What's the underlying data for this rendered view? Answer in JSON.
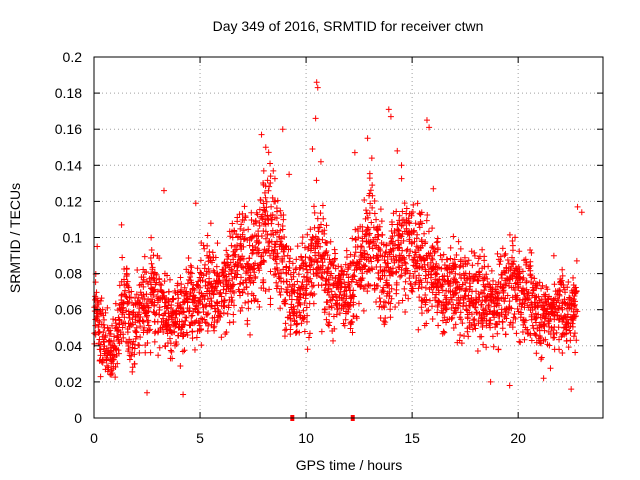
{
  "chart_data": {
    "type": "scatter",
    "title": "Day 349 of 2016, SRMTID for receiver ctwn",
    "xlabel": "GPS time / hours",
    "ylabel": "SRMTID / TECUs",
    "xlim": [
      0,
      24
    ],
    "ylim": [
      0,
      0.2
    ],
    "xticks": [
      0,
      5,
      10,
      15,
      20
    ],
    "xtick_labels": [
      "0",
      "5",
      "10",
      "15",
      "20"
    ],
    "yticks": [
      0,
      0.02,
      0.04,
      0.06,
      0.08,
      0.1,
      0.12,
      0.14,
      0.16,
      0.18,
      0.2
    ],
    "ytick_labels": [
      "0",
      "0.02",
      "0.04",
      "0.06",
      "0.08",
      "0.1",
      "0.12",
      "0.14",
      "0.16",
      "0.18",
      "0.2"
    ],
    "grid": true,
    "marker": "plus",
    "series_color": "#ff0000",
    "gap_markers_x": [
      9.35,
      12.2
    ],
    "series": [
      {
        "name": "SRMTID",
        "x": [
          0.1,
          0.3,
          0.5,
          0.7,
          0.9,
          1.1,
          1.3,
          1.5,
          1.7,
          1.9,
          2.1,
          2.3,
          2.5,
          2.7,
          2.9,
          3.1,
          3.3,
          3.5,
          3.7,
          3.9,
          4.1,
          4.3,
          4.5,
          4.7,
          4.9,
          5.1,
          5.3,
          5.5,
          5.7,
          5.9,
          6.1,
          6.3,
          6.5,
          6.7,
          6.9,
          7.1,
          7.3,
          7.5,
          7.7,
          7.9,
          8.1,
          8.3,
          8.5,
          8.7,
          8.9,
          9.1,
          9.3,
          9.5,
          9.7,
          9.9,
          10.1,
          10.3,
          10.5,
          10.7,
          10.9,
          11.1,
          11.3,
          11.5,
          11.7,
          11.9,
          12.1,
          12.3,
          12.5,
          12.7,
          12.9,
          13.1,
          13.3,
          13.5,
          13.7,
          13.9,
          14.1,
          14.3,
          14.5,
          14.7,
          14.9,
          15.1,
          15.3,
          15.5,
          15.7,
          15.9,
          16.1,
          16.3,
          16.5,
          16.7,
          16.9,
          17.1,
          17.3,
          17.5,
          17.7,
          17.9,
          18.1,
          18.3,
          18.5,
          18.7,
          18.9,
          19.1,
          19.3,
          19.5,
          19.7,
          19.9,
          20.1,
          20.3,
          20.5,
          20.7,
          20.9,
          21.1,
          21.3,
          21.5,
          21.7,
          21.9,
          22.1,
          22.3,
          22.5,
          22.7
        ],
        "y": [
          0.062,
          0.048,
          0.041,
          0.038,
          0.036,
          0.045,
          0.058,
          0.066,
          0.055,
          0.05,
          0.06,
          0.064,
          0.058,
          0.068,
          0.065,
          0.062,
          0.06,
          0.058,
          0.055,
          0.056,
          0.054,
          0.062,
          0.065,
          0.06,
          0.068,
          0.07,
          0.072,
          0.075,
          0.072,
          0.07,
          0.068,
          0.075,
          0.08,
          0.088,
          0.09,
          0.085,
          0.08,
          0.09,
          0.095,
          0.1,
          0.105,
          0.108,
          0.1,
          0.095,
          0.085,
          0.075,
          0.07,
          0.068,
          0.072,
          0.074,
          0.078,
          0.085,
          0.09,
          0.088,
          0.08,
          0.075,
          0.07,
          0.068,
          0.07,
          0.072,
          0.076,
          0.08,
          0.085,
          0.09,
          0.095,
          0.1,
          0.095,
          0.085,
          0.075,
          0.08,
          0.088,
          0.095,
          0.1,
          0.098,
          0.092,
          0.09,
          0.088,
          0.085,
          0.08,
          0.082,
          0.078,
          0.075,
          0.07,
          0.072,
          0.074,
          0.07,
          0.068,
          0.07,
          0.065,
          0.068,
          0.07,
          0.066,
          0.064,
          0.062,
          0.06,
          0.065,
          0.068,
          0.07,
          0.075,
          0.072,
          0.07,
          0.068,
          0.065,
          0.062,
          0.06,
          0.058,
          0.056,
          0.058,
          0.06,
          0.062,
          0.06,
          0.058,
          0.06,
          0.062
        ],
        "spread": [
          0.015,
          0.016,
          0.015,
          0.014,
          0.014,
          0.015,
          0.016,
          0.017,
          0.016,
          0.015,
          0.016,
          0.017,
          0.016,
          0.018,
          0.017,
          0.016,
          0.016,
          0.016,
          0.015,
          0.015,
          0.015,
          0.016,
          0.017,
          0.016,
          0.017,
          0.017,
          0.017,
          0.018,
          0.017,
          0.017,
          0.017,
          0.018,
          0.019,
          0.02,
          0.021,
          0.02,
          0.019,
          0.021,
          0.022,
          0.023,
          0.024,
          0.025,
          0.023,
          0.022,
          0.02,
          0.018,
          0.017,
          0.017,
          0.018,
          0.019,
          0.02,
          0.021,
          0.022,
          0.022,
          0.02,
          0.019,
          0.018,
          0.017,
          0.018,
          0.018,
          0.019,
          0.02,
          0.021,
          0.022,
          0.023,
          0.024,
          0.023,
          0.021,
          0.019,
          0.02,
          0.021,
          0.022,
          0.023,
          0.023,
          0.022,
          0.021,
          0.021,
          0.021,
          0.02,
          0.02,
          0.019,
          0.019,
          0.018,
          0.018,
          0.018,
          0.018,
          0.017,
          0.018,
          0.017,
          0.017,
          0.018,
          0.017,
          0.017,
          0.016,
          0.016,
          0.017,
          0.017,
          0.018,
          0.019,
          0.018,
          0.018,
          0.017,
          0.017,
          0.016,
          0.016,
          0.016,
          0.015,
          0.016,
          0.016,
          0.016,
          0.016,
          0.016,
          0.016,
          0.016
        ]
      }
    ],
    "outliers": [
      {
        "x": 2.5,
        "y": 0.014
      },
      {
        "x": 4.2,
        "y": 0.013
      },
      {
        "x": 3.3,
        "y": 0.126
      },
      {
        "x": 4.8,
        "y": 0.119
      },
      {
        "x": 7.9,
        "y": 0.157
      },
      {
        "x": 8.1,
        "y": 0.15
      },
      {
        "x": 8.3,
        "y": 0.141
      },
      {
        "x": 8.9,
        "y": 0.16
      },
      {
        "x": 9.2,
        "y": 0.135
      },
      {
        "x": 10.5,
        "y": 0.186
      },
      {
        "x": 10.55,
        "y": 0.183
      },
      {
        "x": 10.45,
        "y": 0.166
      },
      {
        "x": 10.3,
        "y": 0.149
      },
      {
        "x": 10.7,
        "y": 0.142
      },
      {
        "x": 12.3,
        "y": 0.147
      },
      {
        "x": 12.9,
        "y": 0.155
      },
      {
        "x": 13.1,
        "y": 0.144
      },
      {
        "x": 13.9,
        "y": 0.171
      },
      {
        "x": 14.0,
        "y": 0.167
      },
      {
        "x": 14.3,
        "y": 0.148
      },
      {
        "x": 14.5,
        "y": 0.14
      },
      {
        "x": 15.7,
        "y": 0.165
      },
      {
        "x": 15.8,
        "y": 0.161
      },
      {
        "x": 16.0,
        "y": 0.127
      },
      {
        "x": 18.7,
        "y": 0.02
      },
      {
        "x": 19.6,
        "y": 0.018
      },
      {
        "x": 21.2,
        "y": 0.022
      },
      {
        "x": 22.5,
        "y": 0.016
      },
      {
        "x": 22.8,
        "y": 0.117
      },
      {
        "x": 23.0,
        "y": 0.114
      },
      {
        "x": 1.3,
        "y": 0.107
      },
      {
        "x": 0.15,
        "y": 0.095
      }
    ]
  }
}
